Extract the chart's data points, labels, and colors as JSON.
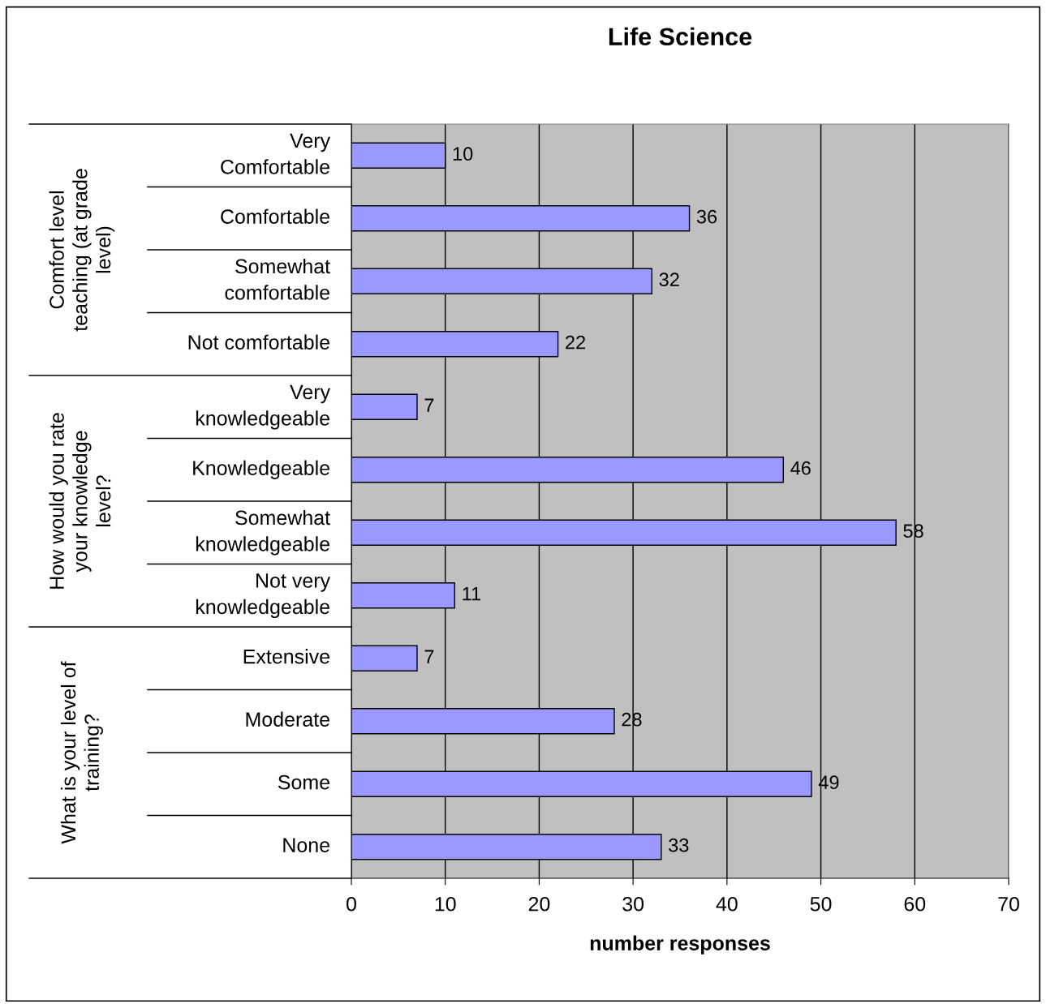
{
  "chart_data": {
    "type": "bar",
    "orientation": "horizontal",
    "title": "Life Science",
    "xlabel": "number responses",
    "categories": [
      "Very\nComfortable",
      "Comfortable",
      "Somewhat\ncomfortable",
      "Not comfortable",
      "Very\nknowledgeable",
      "Knowledgeable",
      "Somewhat\nknowledgeable",
      "Not very\nknowledgeable",
      "Extensive",
      "Moderate",
      "Some",
      "None"
    ],
    "values": [
      10,
      36,
      32,
      22,
      7,
      46,
      58,
      11,
      7,
      28,
      49,
      33
    ],
    "color": "#9999ff",
    "xlim": [
      0,
      70
    ],
    "xticks": [
      0,
      10,
      20,
      30,
      40,
      50,
      60,
      70
    ],
    "grid": "x",
    "data_labels": true,
    "annotations": [
      "Comfort level\nteaching (at grade\nlevel)",
      "How would you rate\nyour knowledge\nlevel?",
      "What is your level of\ntraining?"
    ]
  }
}
